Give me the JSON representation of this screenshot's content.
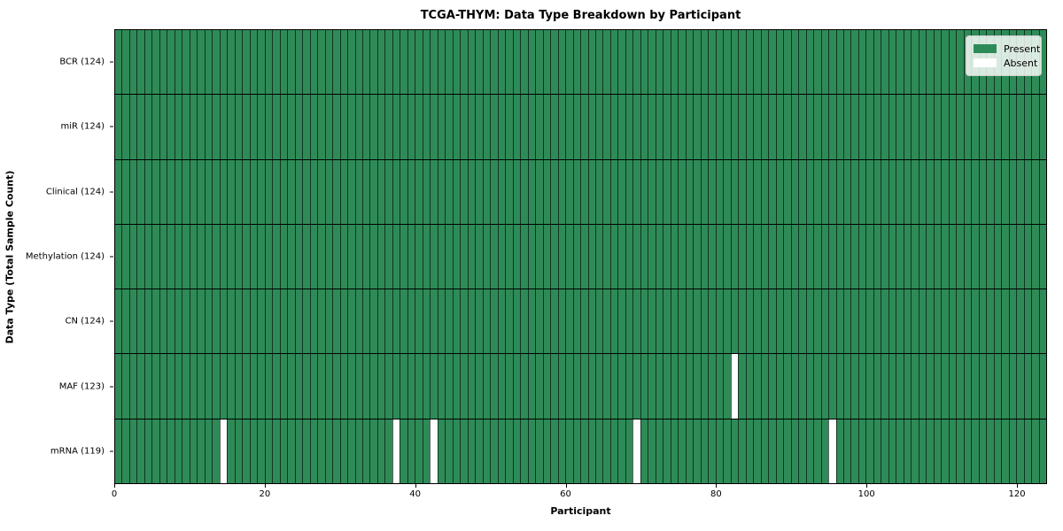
{
  "title": "TCGA-THYM: Data Type Breakdown by Participant",
  "chart_data": {
    "type": "heatmap",
    "title": "TCGA-THYM: Data Type Breakdown by Participant",
    "xlabel": "Participant",
    "ylabel": "Data Type (Total Sample Count)",
    "n_participants": 124,
    "x_ticks": [
      0,
      20,
      40,
      60,
      80,
      100,
      120
    ],
    "grid": "cell-edges",
    "legend_position": "upper-right",
    "colors": {
      "present": "#2E8B57",
      "absent": "#FFFFFF"
    },
    "rows": [
      {
        "name": "BCR",
        "label": "BCR (124)",
        "total": 124,
        "absent_participants": []
      },
      {
        "name": "miR",
        "label": "miR (124)",
        "total": 124,
        "absent_participants": []
      },
      {
        "name": "Clinical",
        "label": "Clinical (124)",
        "total": 124,
        "absent_participants": []
      },
      {
        "name": "Methylation",
        "label": "Methylation (124)",
        "total": 124,
        "absent_participants": []
      },
      {
        "name": "CN",
        "label": "CN (124)",
        "total": 124,
        "absent_participants": []
      },
      {
        "name": "MAF",
        "label": "MAF (123)",
        "total": 123,
        "absent_participants": [
          82
        ]
      },
      {
        "name": "mRNA",
        "label": "mRNA (119)",
        "total": 119,
        "absent_participants": [
          14,
          37,
          42,
          69,
          95
        ]
      }
    ],
    "legend": [
      {
        "label": "Present",
        "color": "#2E8B57"
      },
      {
        "label": "Absent",
        "color": "#FFFFFF"
      }
    ]
  }
}
